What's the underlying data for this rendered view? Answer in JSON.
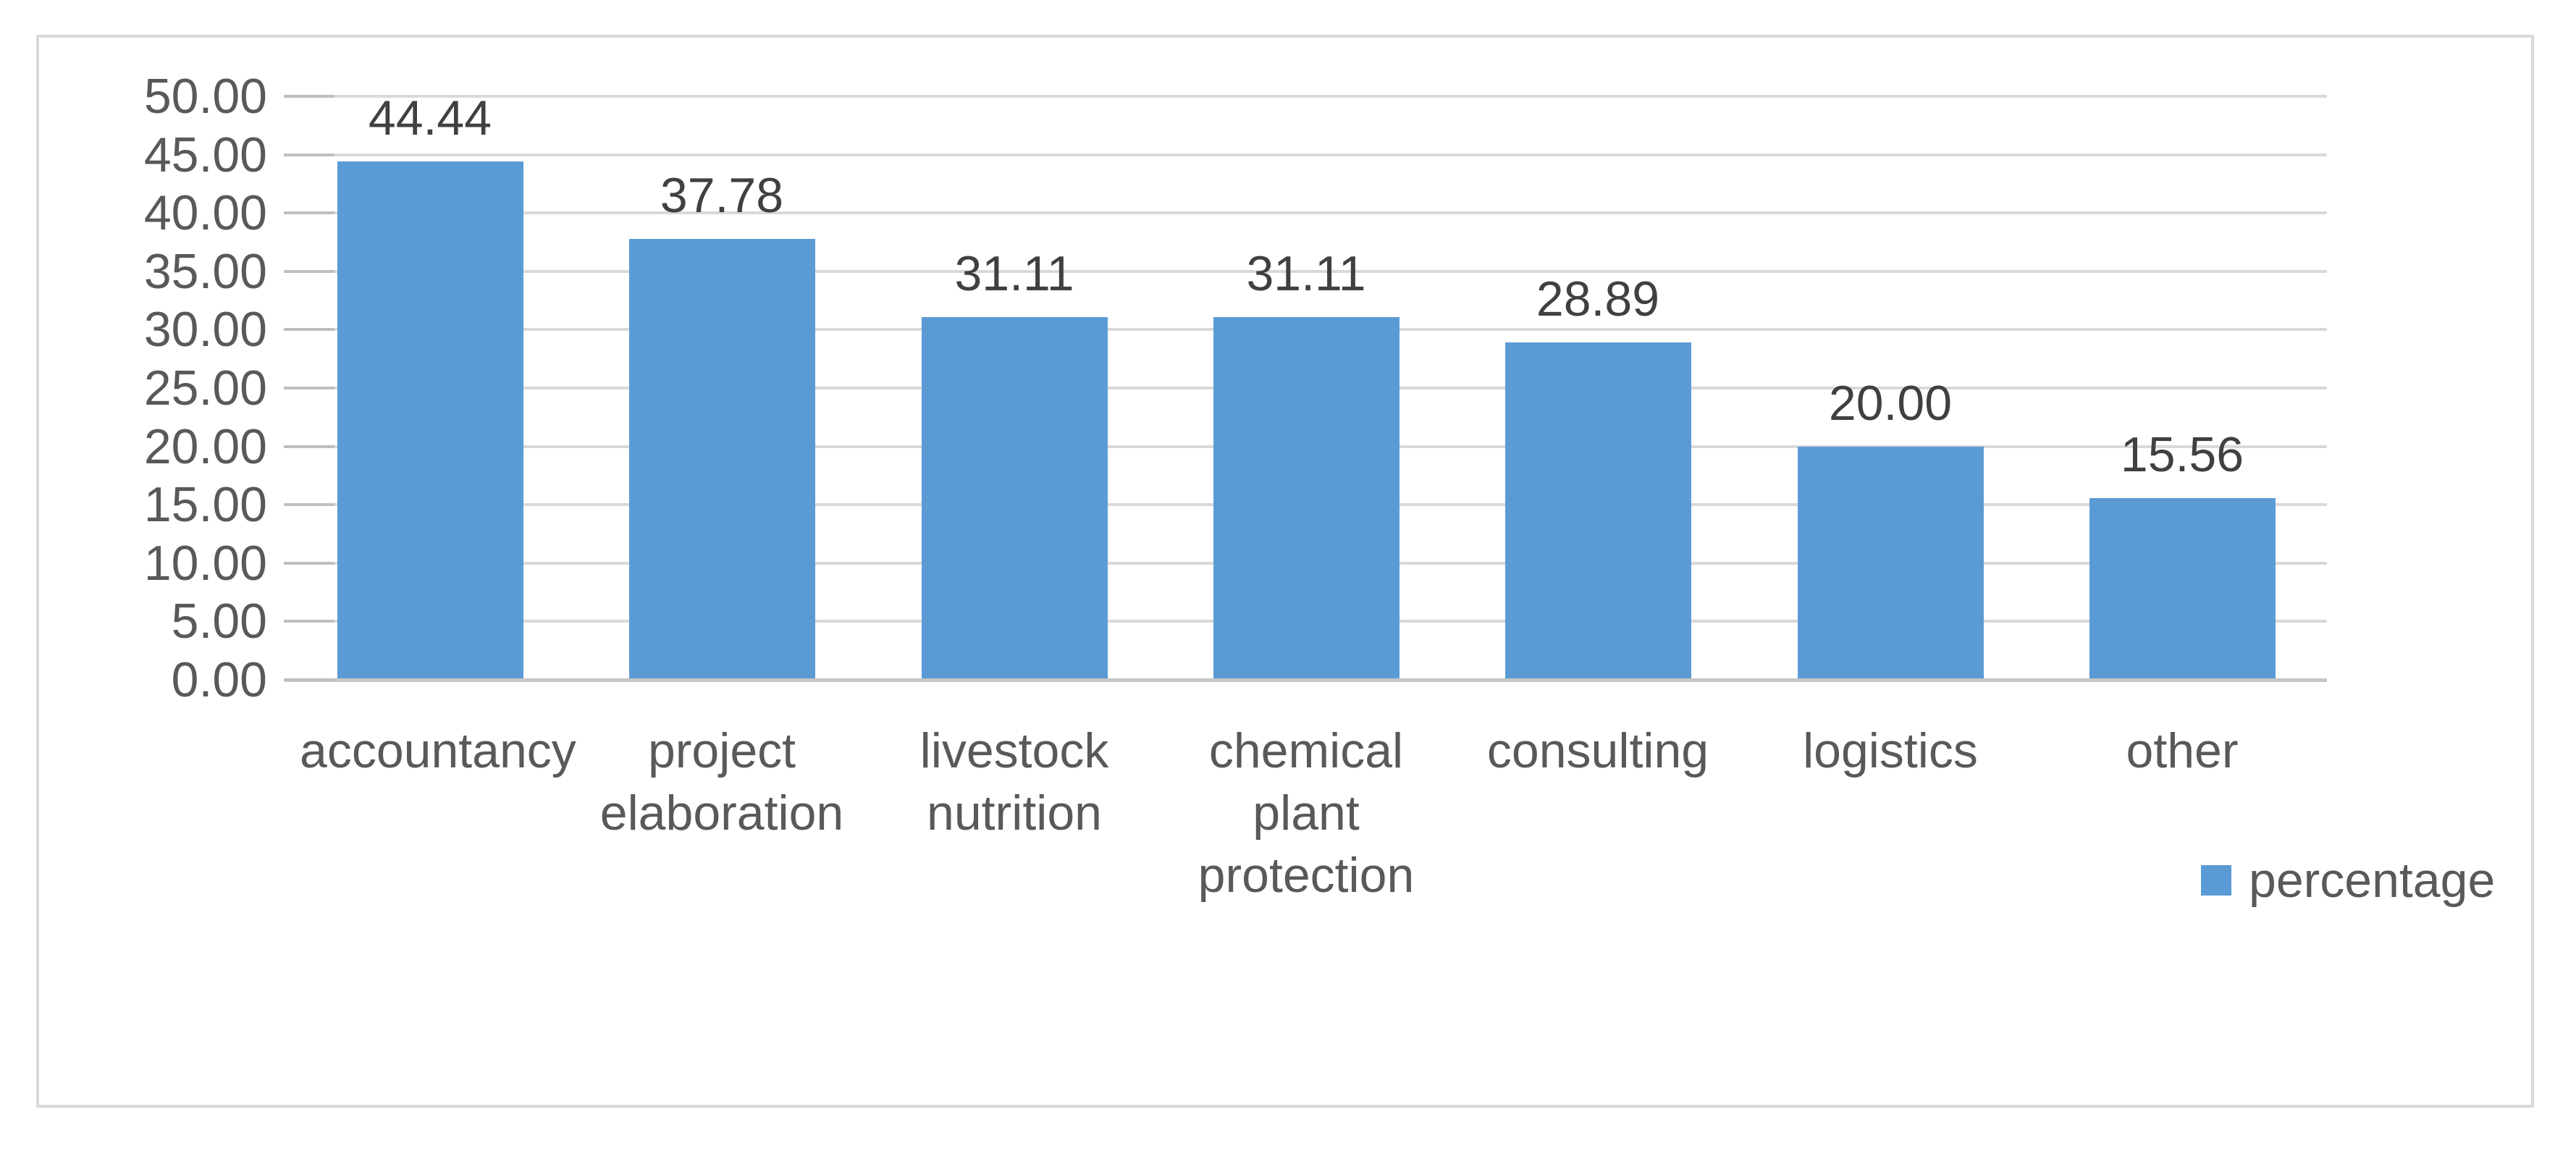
{
  "chart_data": {
    "type": "bar",
    "title": "",
    "categories": [
      "accountancy",
      "project elaboration",
      "livestock nutrition",
      "chemical plant protection",
      "consulting",
      "logistics",
      "other"
    ],
    "series": [
      {
        "name": "percentage",
        "values": [
          44.44,
          37.78,
          31.11,
          31.11,
          28.89,
          20.0,
          15.56
        ]
      }
    ],
    "data_labels": [
      "44.44",
      "37.78",
      "31.11",
      "31.11",
      "28.89",
      "20.00",
      "15.56"
    ],
    "y_tick_labels": [
      "50.00",
      "45.00",
      "40.00",
      "35.00",
      "30.00",
      "25.00",
      "20.00",
      "15.00",
      "10.00",
      "5.00",
      "0.00"
    ],
    "ylim": [
      0,
      50
    ],
    "y_step": 5,
    "xlabel": "",
    "ylabel": "",
    "grid": true,
    "legend": {
      "label": "percentage",
      "position": "bottom-right"
    }
  },
  "colors": {
    "bar": "#5B9BD5",
    "gridline": "#D9D9D9",
    "tick": "#BFBFBF",
    "axis_line": "#C6C6C6",
    "frame_border": "#D9D9D9",
    "axis_text": "#595959",
    "data_label_text": "#404040",
    "background": "#FFFFFF"
  }
}
